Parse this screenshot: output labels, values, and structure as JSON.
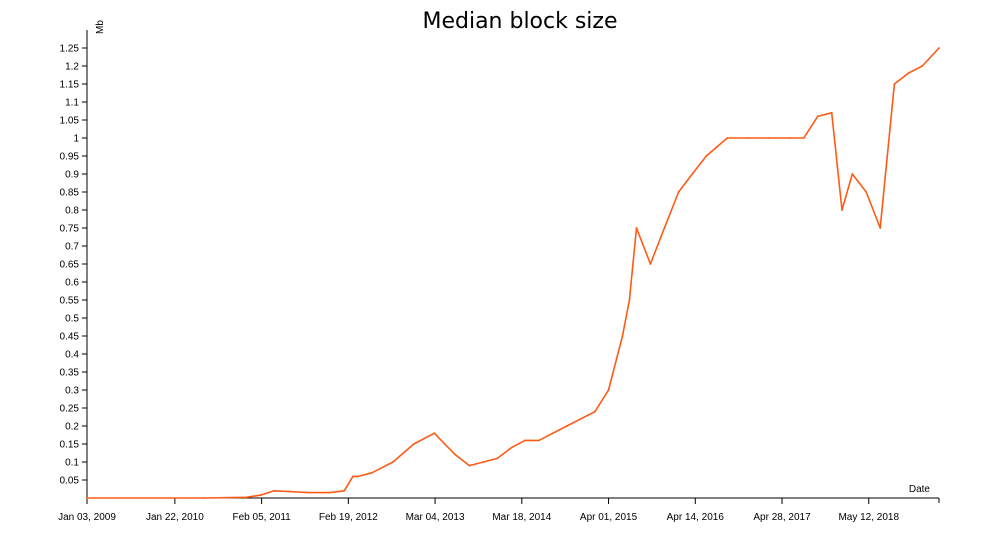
{
  "chart_data": {
    "type": "line",
    "title": "Median block size",
    "xlabel": "Date",
    "ylabel": "Mb",
    "ylim": [
      0,
      1.3
    ],
    "grid": false,
    "legend": "none",
    "line_color": "#ff5a14",
    "x_ticks": [
      "Jan 03, 2009",
      "Jan 22, 2010",
      "Feb 05, 2011",
      "Feb 19, 2012",
      "Mar 04, 2013",
      "Mar 18, 2014",
      "Apr 01, 2015",
      "Apr 14, 2016",
      "Apr 28, 2017",
      "May 12, 2018"
    ],
    "y_ticks": [
      "0.05",
      "0.1",
      "0.15",
      "0.2",
      "0.25",
      "0.3",
      "0.35",
      "0.4",
      "0.45",
      "0.5",
      "0.55",
      "0.6",
      "0.65",
      "0.7",
      "0.75",
      "0.8",
      "0.85",
      "0.9",
      "0.95",
      "1",
      "1.05",
      "1.1",
      "1.15",
      "1.2",
      "1.25"
    ],
    "x_range": [
      "2009-01-03",
      "2019-03-15"
    ],
    "series": [
      {
        "x": [
          "2009-01-03",
          "2010-06-01",
          "2010-12-01",
          "2011-02-01",
          "2011-04-01",
          "2011-06-01",
          "2011-09-01",
          "2011-12-01",
          "2012-02-01",
          "2012-03-10",
          "2012-04-01",
          "2012-06-01",
          "2012-09-01",
          "2012-12-01",
          "2013-03-01",
          "2013-04-15",
          "2013-06-01",
          "2013-08-01",
          "2013-10-01",
          "2013-12-01",
          "2014-02-01",
          "2014-04-01",
          "2014-06-01",
          "2014-08-01",
          "2014-10-01",
          "2014-12-01",
          "2015-02-01",
          "2015-04-01",
          "2015-06-01",
          "2015-07-01",
          "2015-08-01",
          "2015-10-01",
          "2015-12-01",
          "2016-02-01",
          "2016-04-01",
          "2016-06-01",
          "2016-09-01",
          "2016-12-01",
          "2017-03-01",
          "2017-06-01",
          "2017-08-01",
          "2017-10-01",
          "2017-12-01",
          "2018-01-15",
          "2018-03-01",
          "2018-05-01",
          "2018-07-01",
          "2018-09-01",
          "2018-11-01",
          "2019-01-01",
          "2019-03-15"
        ],
        "y": [
          0.0,
          0.0,
          0.002,
          0.008,
          0.02,
          0.018,
          0.015,
          0.015,
          0.02,
          0.06,
          0.06,
          0.07,
          0.1,
          0.15,
          0.18,
          0.15,
          0.12,
          0.09,
          0.1,
          0.11,
          0.14,
          0.16,
          0.16,
          0.18,
          0.2,
          0.22,
          0.24,
          0.3,
          0.45,
          0.55,
          0.75,
          0.65,
          0.75,
          0.85,
          0.9,
          0.95,
          1.0,
          1.0,
          1.0,
          1.0,
          1.0,
          1.06,
          1.07,
          0.8,
          0.9,
          0.85,
          0.75,
          1.15,
          1.18,
          1.2,
          1.25
        ]
      }
    ]
  }
}
